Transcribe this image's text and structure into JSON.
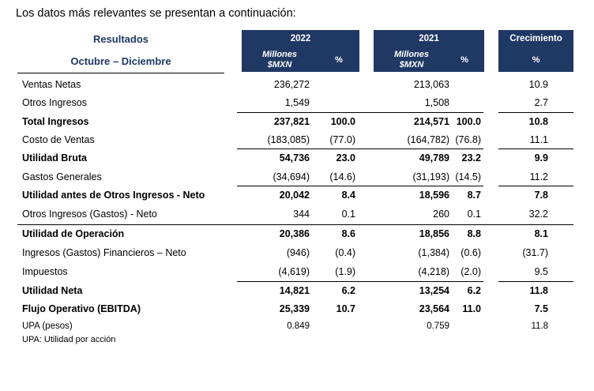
{
  "intro": "Los datos más relevantes se presentan a continuación:",
  "header": {
    "title1": "Resultados",
    "title2": "Octubre – Diciembre",
    "y2022": "2022",
    "y2021": "2021",
    "units_line1": "Millones",
    "units_line2": "$MXN",
    "pct": "%",
    "growth": "Crecimiento",
    "growth_pct": "%"
  },
  "rows": [
    {
      "label": "Ventas Netas",
      "v22": "236,272",
      "p22": "",
      "v21": "213,063",
      "p21": "",
      "g": "10.9"
    },
    {
      "label": "Otros Ingresos",
      "v22": "1,549",
      "p22": "",
      "v21": "1,508",
      "p21": "",
      "g": "2.7"
    },
    {
      "label": "Total Ingresos",
      "v22": "237,821",
      "p22": "100.0",
      "v21": "214,571",
      "p21": "100.0",
      "g": "10.8"
    },
    {
      "label": "Costo de Ventas",
      "v22": "(183,085)",
      "p22": "(77.0)",
      "v21": "(164,782)",
      "p21": "(76.8)",
      "g": "11.1"
    },
    {
      "label": "Utilidad Bruta",
      "v22": "54,736",
      "p22": "23.0",
      "v21": "49,789",
      "p21": "23.2",
      "g": "9.9"
    },
    {
      "label": "Gastos Generales",
      "v22": "(34,694)",
      "p22": "(14.6)",
      "v21": "(31,193)",
      "p21": "(14.5)",
      "g": "11.2"
    },
    {
      "label": "Utilidad antes de Otros Ingresos - Neto",
      "v22": "20,042",
      "p22": "8.4",
      "v21": "18,596",
      "p21": "8.7",
      "g": "7.8"
    },
    {
      "label": "Otros Ingresos (Gastos) - Neto",
      "v22": "344",
      "p22": "0.1",
      "v21": "260",
      "p21": "0.1",
      "g": "32.2"
    },
    {
      "label": "Utilidad de Operación",
      "v22": "20,386",
      "p22": "8.6",
      "v21": "18,856",
      "p21": "8.8",
      "g": "8.1"
    },
    {
      "label": "Ingresos (Gastos) Financieros – Neto",
      "v22": "(946)",
      "p22": "(0.4)",
      "v21": "(1,384)",
      "p21": "(0.6)",
      "g": "(31.7)"
    },
    {
      "label": "Impuestos",
      "v22": "(4,619)",
      "p22": "(1.9)",
      "v21": "(4,218)",
      "p21": "(2.0)",
      "g": "9.5"
    },
    {
      "label": "Utilidad Neta",
      "v22": "14,821",
      "p22": "6.2",
      "v21": "13,254",
      "p21": "6.2",
      "g": "11.8"
    },
    {
      "label": "Flujo Operativo (EBITDA)",
      "v22": "25,339",
      "p22": "10.7",
      "v21": "23,564",
      "p21": "11.0",
      "g": "7.5"
    },
    {
      "label": "UPA (pesos)",
      "v22": "0.849",
      "p22": "",
      "v21": "0.759",
      "p21": "",
      "g": "11.8"
    }
  ],
  "footnote": "UPA: Utilidad por acción"
}
